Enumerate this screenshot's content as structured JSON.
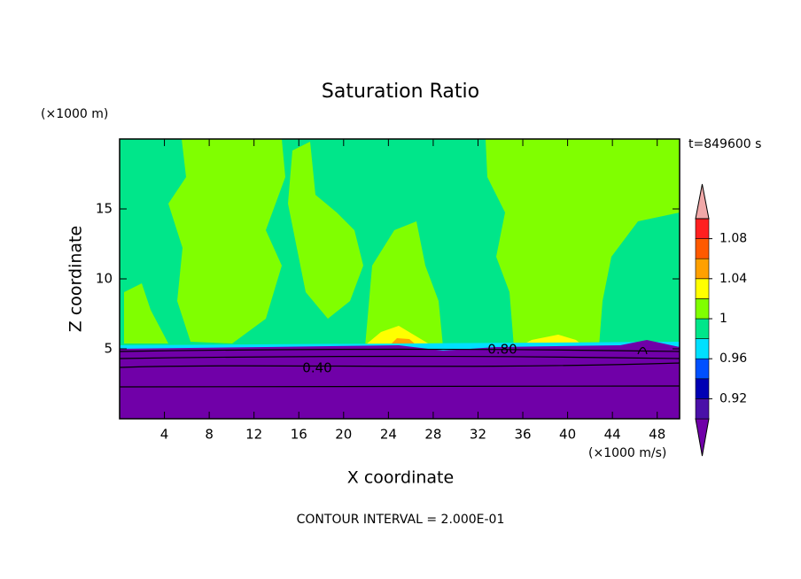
{
  "chart_data": {
    "type": "contour",
    "title": "Saturation Ratio",
    "x_label": "X coordinate",
    "y_label": "Z coordinate",
    "x_unit": "(×1000 m/s)",
    "y_unit": "(×1000 m)",
    "time_label": "t=849600 s",
    "footer": "CONTOUR INTERVAL = 2.000E-01",
    "xlim": [
      0,
      50
    ],
    "xticks": [
      4,
      8,
      12,
      16,
      20,
      24,
      28,
      32,
      36,
      40,
      44,
      48
    ],
    "ylim": [
      0,
      20
    ],
    "yticks": [
      5,
      10,
      15
    ],
    "contour_labels": [
      "0.40",
      "0.80"
    ],
    "colorbar": {
      "levels": [
        0.9,
        0.92,
        0.94,
        0.96,
        0.98,
        1,
        1.02,
        1.04,
        1.06,
        1.08,
        1.1
      ],
      "ticks": [
        0.92,
        0.96,
        1,
        1.04,
        1.08
      ],
      "colors": [
        "#7000a8",
        "#4a10a8",
        "#0000b4",
        "#0050ff",
        "#00e0ff",
        "#00e68a",
        "#80ff00",
        "#ffff00",
        "#ffa000",
        "#ff5a00",
        "#ff2020",
        "#f0a8a8"
      ]
    }
  }
}
